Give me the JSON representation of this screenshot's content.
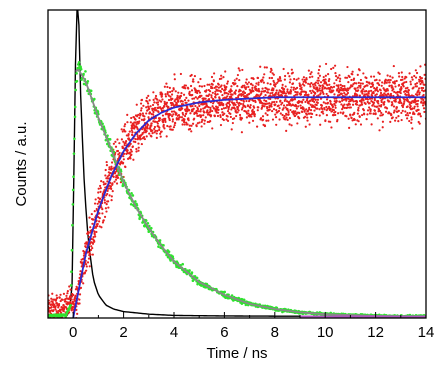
{
  "chart_data": {
    "type": "line",
    "xlabel": "Time / ns",
    "ylabel": "Counts / a.u.",
    "xlim": [
      -1,
      14
    ],
    "ylim": [
      0,
      1.2
    ],
    "x_ticks": [
      0,
      2,
      4,
      6,
      8,
      10,
      12,
      14
    ],
    "y_ticks_labeled": false,
    "grid": false,
    "legend": "none",
    "series": [
      {
        "kind": "line",
        "color": "#000000",
        "x": [
          -1,
          -0.2,
          -0.05,
          0.05,
          0.12,
          0.2,
          0.3,
          0.45,
          0.6,
          0.8,
          1.0,
          1.3,
          1.6,
          2.0,
          2.5,
          3.0,
          4.0,
          6.0,
          14
        ],
        "y": [
          0.01,
          0.01,
          0.1,
          0.7,
          1.2,
          1.25,
          0.85,
          0.5,
          0.3,
          0.15,
          0.09,
          0.05,
          0.035,
          0.025,
          0.02,
          0.015,
          0.01,
          0.008,
          0.005
        ]
      },
      {
        "kind": "scatter",
        "color": "#2ee22e",
        "x": [
          -1,
          -0.3,
          -0.1,
          0.0,
          0.1,
          0.2,
          0.3,
          0.5,
          0.8,
          1.0,
          1.5,
          2.0,
          2.5,
          3.0,
          3.5,
          4.0,
          5.0,
          6.0,
          7.0,
          8.0,
          9.0,
          10.0,
          12.0,
          14.0
        ],
        "y": [
          0.01,
          0.01,
          0.05,
          0.5,
          0.92,
          0.98,
          0.96,
          0.92,
          0.84,
          0.78,
          0.66,
          0.53,
          0.43,
          0.35,
          0.28,
          0.22,
          0.14,
          0.09,
          0.055,
          0.035,
          0.022,
          0.015,
          0.008,
          0.005
        ]
      },
      {
        "kind": "line",
        "color": "#888888",
        "x": [
          0.1,
          0.2,
          0.5,
          1.0,
          1.5,
          2.0,
          2.5,
          3.0,
          3.5,
          4.0,
          5.0,
          6.0,
          7.0,
          8.0,
          9.0,
          10.0,
          12.0,
          14.0
        ],
        "y": [
          0.96,
          0.97,
          0.92,
          0.78,
          0.66,
          0.53,
          0.43,
          0.35,
          0.28,
          0.22,
          0.14,
          0.09,
          0.055,
          0.035,
          0.022,
          0.015,
          0.008,
          0.005
        ]
      },
      {
        "kind": "scatter",
        "color": "#e82020",
        "x": [
          -1,
          -0.5,
          -0.2,
          0.0,
          0.2,
          0.5,
          1.0,
          1.5,
          2.0,
          2.5,
          3.0,
          3.5,
          4.0,
          4.5,
          5.0,
          6.0,
          7.0,
          8.0,
          10.0,
          12.0,
          14.0
        ],
        "y": [
          0.03,
          0.03,
          0.05,
          0.05,
          0.1,
          0.25,
          0.42,
          0.55,
          0.65,
          0.72,
          0.77,
          0.8,
          0.82,
          0.83,
          0.84,
          0.85,
          0.855,
          0.86,
          0.86,
          0.86,
          0.86
        ]
      },
      {
        "kind": "line",
        "color": "#2a2ad0",
        "x": [
          0.0,
          0.2,
          0.5,
          1.0,
          1.5,
          2.0,
          2.5,
          3.0,
          3.5,
          4.0,
          4.5,
          5.0,
          6.0,
          7.0,
          8.0,
          10.0,
          12.0,
          14.0
        ],
        "y": [
          0.0,
          0.1,
          0.25,
          0.42,
          0.55,
          0.65,
          0.72,
          0.77,
          0.8,
          0.82,
          0.83,
          0.84,
          0.85,
          0.855,
          0.86,
          0.86,
          0.86,
          0.86
        ]
      },
      {
        "kind": "line",
        "color": "#b050c0",
        "x": [
          9,
          14
        ],
        "y": [
          0.006,
          0.006
        ]
      }
    ]
  }
}
